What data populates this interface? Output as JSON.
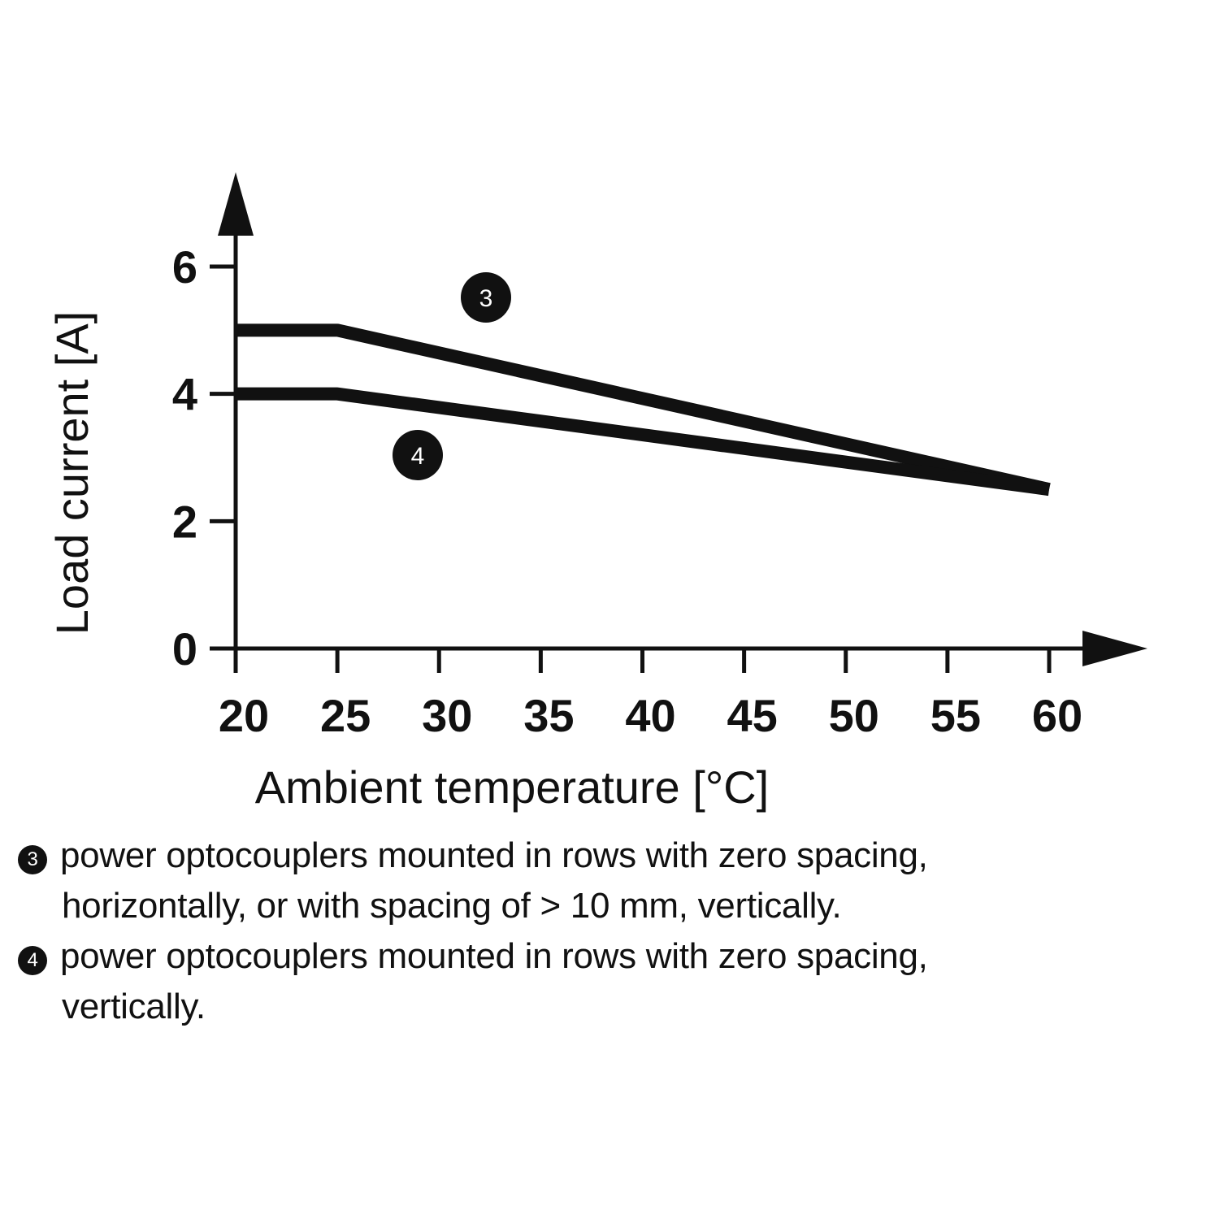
{
  "chart_data": {
    "type": "line",
    "xlabel": "Ambient temperature [°C]",
    "ylabel": "Load current [A]",
    "x_ticks": [
      "20",
      "25",
      "30",
      "35",
      "40",
      "45",
      "50",
      "55",
      "60"
    ],
    "y_ticks": [
      "0",
      "2",
      "4",
      "6"
    ],
    "xlim": [
      20,
      60
    ],
    "ylim": [
      0,
      6
    ],
    "grid": false,
    "series": [
      {
        "name": "3",
        "x": [
          20,
          25,
          60
        ],
        "y": [
          5.0,
          5.0,
          2.5
        ]
      },
      {
        "name": "4",
        "x": [
          20,
          25,
          60
        ],
        "y": [
          4.0,
          4.0,
          2.5
        ]
      }
    ]
  },
  "legend": [
    {
      "badge": "3",
      "line1": "power optocouplers mounted in rows with zero spacing,",
      "line2": "horizontally, or with spacing of > 10 mm, vertically."
    },
    {
      "badge": "4",
      "line1": "power optocouplers mounted in rows with zero spacing,",
      "line2": "vertically."
    }
  ],
  "colors": {
    "line": "#111111",
    "background": "#ffffff"
  }
}
